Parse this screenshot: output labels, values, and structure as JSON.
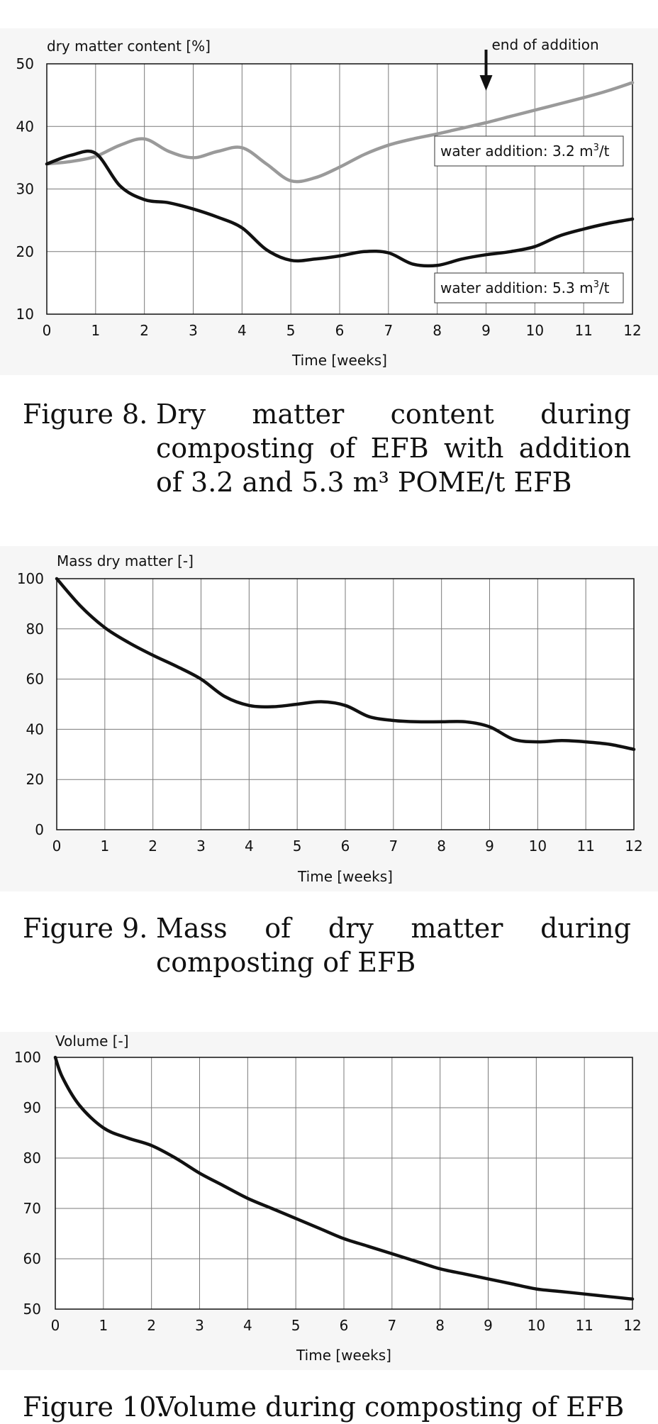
{
  "chart_data": [
    {
      "type": "line",
      "ylabel": "dry matter content [%]",
      "xlabel": "Time [weeks]",
      "xlim": [
        0,
        12
      ],
      "ylim": [
        10,
        50
      ],
      "xticks": [
        0,
        1,
        2,
        3,
        4,
        5,
        6,
        7,
        8,
        9,
        10,
        11,
        12
      ],
      "yticks": [
        10,
        20,
        30,
        40,
        50
      ],
      "grid": true,
      "series": [
        {
          "name": "water addition: 3.2 m³/t",
          "color": "#9a9a9a",
          "x": [
            0,
            0.5,
            1,
            1.5,
            2,
            2.5,
            3,
            3.5,
            4,
            4.5,
            5,
            5.5,
            6,
            6.5,
            7,
            7.5,
            8,
            8.5,
            9,
            9.5,
            10,
            10.5,
            11,
            11.5,
            12
          ],
          "y": [
            34,
            34.4,
            35.2,
            37,
            38,
            36,
            35,
            36,
            36.6,
            34,
            31.3,
            31.8,
            33.5,
            35.5,
            37,
            38,
            38.8,
            39.7,
            40.6,
            41.6,
            42.6,
            43.6,
            44.6,
            45.7,
            47
          ]
        },
        {
          "name": "water addition: 5.3 m³/t",
          "color": "#111111",
          "x": [
            0,
            0.5,
            1,
            1.5,
            2,
            2.5,
            3,
            3.5,
            4,
            4.5,
            5,
            5.5,
            6,
            6.5,
            7,
            7.5,
            8,
            8.5,
            9,
            9.5,
            10,
            10.5,
            11,
            11.5,
            12
          ],
          "y": [
            34,
            35.4,
            35.7,
            30.5,
            28.3,
            27.8,
            26.8,
            25.5,
            23.8,
            20.3,
            18.6,
            18.8,
            19.3,
            20,
            19.8,
            18,
            17.8,
            18.8,
            19.5,
            20,
            20.8,
            22.5,
            23.6,
            24.5,
            25.2
          ]
        }
      ],
      "annotations": {
        "end_of_addition": "end of addition",
        "end_of_addition_x": 9,
        "label_32": "water addition: 3.2 m",
        "label_53": "water addition: 5.3 m",
        "unit_sup": "3",
        "unit_tail": "/t"
      }
    },
    {
      "type": "line",
      "ylabel": "Mass dry matter [-]",
      "xlabel": "Time [weeks]",
      "xlim": [
        0,
        12
      ],
      "ylim": [
        0,
        100
      ],
      "xticks": [
        0,
        1,
        2,
        3,
        4,
        5,
        6,
        7,
        8,
        9,
        10,
        11,
        12
      ],
      "yticks": [
        0,
        20,
        40,
        60,
        80,
        100
      ],
      "grid": true,
      "series": [
        {
          "color": "#111111",
          "x": [
            0,
            0.5,
            1,
            1.5,
            2,
            2.5,
            3,
            3.5,
            4,
            4.5,
            5,
            5.5,
            6,
            6.5,
            7,
            7.5,
            8,
            8.5,
            9,
            9.5,
            10,
            10.5,
            11,
            11.5,
            12
          ],
          "y": [
            100,
            89,
            80.5,
            74.5,
            69.5,
            65,
            60,
            53,
            49.5,
            49,
            50,
            51,
            49.5,
            45,
            43.5,
            43,
            43,
            43,
            41,
            36,
            35,
            35.5,
            35,
            34,
            32
          ]
        }
      ]
    },
    {
      "type": "line",
      "ylabel": "Volume [-]",
      "xlabel": "Time [weeks]",
      "xlim": [
        0,
        12
      ],
      "ylim": [
        50,
        100
      ],
      "xticks": [
        0,
        1,
        2,
        3,
        4,
        5,
        6,
        7,
        8,
        9,
        10,
        11,
        12
      ],
      "yticks": [
        50,
        60,
        70,
        80,
        90,
        100
      ],
      "grid": true,
      "series": [
        {
          "color": "#111111",
          "x": [
            0,
            0.15,
            0.5,
            1,
            1.5,
            2,
            2.5,
            3,
            3.5,
            4,
            4.5,
            5,
            5.5,
            6,
            6.5,
            7,
            7.5,
            8,
            8.5,
            9,
            9.5,
            10,
            10.5,
            11,
            11.5,
            12
          ],
          "y": [
            100,
            96,
            90.5,
            86,
            84,
            82.5,
            80,
            77,
            74.5,
            72,
            70,
            68,
            66,
            64,
            62.5,
            61,
            59.5,
            58,
            57,
            56,
            55,
            54,
            53.5,
            53,
            52.5,
            52
          ]
        }
      ]
    }
  ],
  "captions": [
    {
      "label": "Figure 8.",
      "text": "Dry matter content during composting of EFB with addition of 3.2 and 5.3 m³ POME/t EFB"
    },
    {
      "label": "Figure 9.",
      "text": "Mass of dry matter during composting of EFB"
    },
    {
      "label": "Figure 10.",
      "text": "Volume during composting of EFB"
    }
  ]
}
